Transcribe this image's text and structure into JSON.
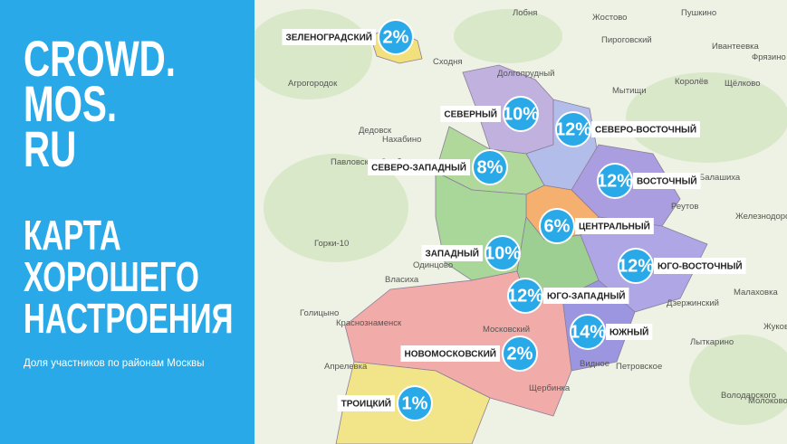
{
  "panel": {
    "brand": [
      "CROWD.",
      "MOS.",
      "RU"
    ],
    "title": [
      "КАРТА",
      "ХОРОШЕГО",
      "НАСТРОЕНИЯ"
    ],
    "subtitle": "Доля участников по районам Москвы"
  },
  "districts": [
    {
      "name": "ЗЕЛЕНОГРАДСКИЙ",
      "share": "2%"
    },
    {
      "name": "СЕВЕРНЫЙ",
      "share": "10%"
    },
    {
      "name": "СЕВЕРО-ВОСТОЧНЫЙ",
      "share": "12%"
    },
    {
      "name": "СЕВЕРО-ЗАПАДНЫЙ",
      "share": "8%"
    },
    {
      "name": "ВОСТОЧНЫЙ",
      "share": "12%"
    },
    {
      "name": "ЦЕНТРАЛЬНЫЙ",
      "share": "6%"
    },
    {
      "name": "ЗАПАДНЫЙ",
      "share": "10%"
    },
    {
      "name": "ЮГО-ВОСТОЧНЫЙ",
      "share": "12%"
    },
    {
      "name": "ЮГО-ЗАПАДНЫЙ",
      "share": "12%"
    },
    {
      "name": "ЮЖНЫЙ",
      "share": "14%"
    },
    {
      "name": "НОВОМОСКОВСКИЙ",
      "share": "2%"
    },
    {
      "name": "ТРОИЦКИЙ",
      "share": "1%"
    }
  ],
  "map_labels": [
    "Лобня",
    "Жостово",
    "Пушкино",
    "Пироговский",
    "Ивантеевка",
    "Фрязино",
    "Долгопрудный",
    "Сходня",
    "Королёв",
    "Щёлково",
    "Мытищи",
    "Агрогородок",
    "Дедовск",
    "Нахабино",
    "Павловская Слобода",
    "Балашиха",
    "Реутов",
    "Железнодорожный",
    "Горки-10",
    "Одинцово",
    "Власиха",
    "Малаховка",
    "Дзержинский",
    "Голицыно",
    "Краснознаменск",
    "Московский",
    "Жуковский",
    "Лыткарино",
    "Апрелевка",
    "Видное",
    "Петровское",
    "Щербинка",
    "Молоково",
    "Володарского"
  ]
}
